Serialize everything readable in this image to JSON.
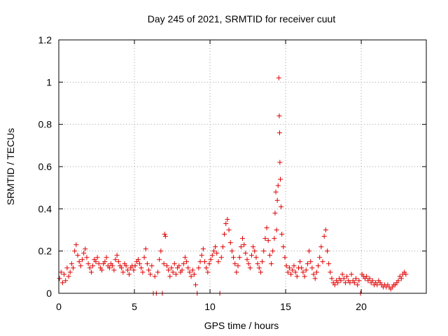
{
  "chart_data": {
    "type": "scatter",
    "title": "Day 245 of 2021, SRMTID for receiver cuut",
    "xlabel": "GPS time / hours",
    "ylabel": "SRMTID / TECUs",
    "xlim": [
      0,
      24.3
    ],
    "ylim": [
      0,
      1.2
    ],
    "x_ticks": [
      0,
      5,
      10,
      15,
      20
    ],
    "x_tick_labels": [
      "0",
      "5",
      "10",
      "15",
      "20"
    ],
    "y_ticks": [
      0,
      0.2,
      0.4,
      0.6,
      0.8,
      1.0,
      1.2
    ],
    "y_tick_labels": [
      "0",
      "0.2",
      "0.4",
      "0.6",
      "0.8",
      "1",
      "1.2"
    ],
    "grid": true,
    "marker": "+",
    "color": "#e00000",
    "series": [
      {
        "name": "SRMTID",
        "points": [
          [
            0.05,
            0.07
          ],
          [
            0.15,
            0.1
          ],
          [
            0.25,
            0.05
          ],
          [
            0.35,
            0.09
          ],
          [
            0.45,
            0.06
          ],
          [
            0.55,
            0.12
          ],
          [
            0.65,
            0.08
          ],
          [
            0.75,
            0.1
          ],
          [
            0.85,
            0.14
          ],
          [
            0.95,
            0.12
          ],
          [
            1.05,
            0.2
          ],
          [
            1.15,
            0.23
          ],
          [
            1.25,
            0.18
          ],
          [
            1.35,
            0.15
          ],
          [
            1.45,
            0.13
          ],
          [
            1.55,
            0.16
          ],
          [
            1.65,
            0.19
          ],
          [
            1.75,
            0.21
          ],
          [
            1.85,
            0.17
          ],
          [
            1.95,
            0.14
          ],
          [
            2.05,
            0.12
          ],
          [
            2.15,
            0.1
          ],
          [
            2.25,
            0.13
          ],
          [
            2.35,
            0.16
          ],
          [
            2.45,
            0.15
          ],
          [
            2.55,
            0.17
          ],
          [
            2.65,
            0.14
          ],
          [
            2.75,
            0.12
          ],
          [
            2.85,
            0.11
          ],
          [
            2.95,
            0.14
          ],
          [
            3.05,
            0.15
          ],
          [
            3.15,
            0.17
          ],
          [
            3.25,
            0.13
          ],
          [
            3.35,
            0.12
          ],
          [
            3.45,
            0.14
          ],
          [
            3.55,
            0.13
          ],
          [
            3.65,
            0.11
          ],
          [
            3.75,
            0.16
          ],
          [
            3.85,
            0.18
          ],
          [
            3.95,
            0.15
          ],
          [
            4.05,
            0.13
          ],
          [
            4.15,
            0.12
          ],
          [
            4.25,
            0.1
          ],
          [
            4.35,
            0.14
          ],
          [
            4.45,
            0.13
          ],
          [
            4.55,
            0.11
          ],
          [
            4.65,
            0.09
          ],
          [
            4.75,
            0.12
          ],
          [
            4.85,
            0.13
          ],
          [
            4.95,
            0.11
          ],
          [
            5.05,
            0.13
          ],
          [
            5.15,
            0.15
          ],
          [
            5.25,
            0.16
          ],
          [
            5.35,
            0.14
          ],
          [
            5.45,
            0.12
          ],
          [
            5.55,
            0.1
          ],
          [
            5.65,
            0.17
          ],
          [
            5.75,
            0.21
          ],
          [
            5.85,
            0.14
          ],
          [
            5.95,
            0.11
          ],
          [
            6.05,
            0.09
          ],
          [
            6.15,
            0.13
          ],
          [
            6.25,
            0.0
          ],
          [
            6.35,
            0.08
          ],
          [
            6.45,
            0.0
          ],
          [
            6.55,
            0.1
          ],
          [
            6.65,
            0.16
          ],
          [
            6.75,
            0.2
          ],
          [
            6.85,
            0.0
          ],
          [
            6.95,
            0.14
          ],
          [
            7.0,
            0.28
          ],
          [
            7.05,
            0.27
          ],
          [
            7.15,
            0.13
          ],
          [
            7.25,
            0.11
          ],
          [
            7.35,
            0.08
          ],
          [
            7.45,
            0.12
          ],
          [
            7.55,
            0.1
          ],
          [
            7.65,
            0.14
          ],
          [
            7.75,
            0.09
          ],
          [
            7.85,
            0.12
          ],
          [
            7.95,
            0.13
          ],
          [
            8.05,
            0.1
          ],
          [
            8.15,
            0.11
          ],
          [
            8.25,
            0.14
          ],
          [
            8.35,
            0.17
          ],
          [
            8.45,
            0.15
          ],
          [
            8.55,
            0.12
          ],
          [
            8.65,
            0.1
          ],
          [
            8.75,
            0.08
          ],
          [
            8.85,
            0.11
          ],
          [
            8.95,
            0.09
          ],
          [
            9.05,
            0.04
          ],
          [
            9.15,
            0.0
          ],
          [
            9.25,
            0.12
          ],
          [
            9.35,
            0.15
          ],
          [
            9.45,
            0.18
          ],
          [
            9.55,
            0.21
          ],
          [
            9.65,
            0.15
          ],
          [
            9.75,
            0.12
          ],
          [
            9.85,
            0.1
          ],
          [
            9.95,
            0.14
          ],
          [
            10.05,
            0.16
          ],
          [
            10.15,
            0.18
          ],
          [
            10.25,
            0.2
          ],
          [
            10.35,
            0.22
          ],
          [
            10.45,
            0.19
          ],
          [
            10.55,
            0.15
          ],
          [
            10.65,
            0.0
          ],
          [
            10.75,
            0.17
          ],
          [
            10.85,
            0.22
          ],
          [
            10.95,
            0.28
          ],
          [
            11.05,
            0.33
          ],
          [
            11.15,
            0.35
          ],
          [
            11.25,
            0.3
          ],
          [
            11.35,
            0.24
          ],
          [
            11.45,
            0.2
          ],
          [
            11.55,
            0.17
          ],
          [
            11.65,
            0.14
          ],
          [
            11.75,
            0.1
          ],
          [
            11.85,
            0.13
          ],
          [
            11.95,
            0.17
          ],
          [
            12.05,
            0.22
          ],
          [
            12.15,
            0.26
          ],
          [
            12.25,
            0.23
          ],
          [
            12.35,
            0.19
          ],
          [
            12.45,
            0.16
          ],
          [
            12.55,
            0.14
          ],
          [
            12.65,
            0.12
          ],
          [
            12.75,
            0.18
          ],
          [
            12.85,
            0.22
          ],
          [
            12.95,
            0.2
          ],
          [
            13.05,
            0.17
          ],
          [
            13.15,
            0.14
          ],
          [
            13.25,
            0.12
          ],
          [
            13.35,
            0.1
          ],
          [
            13.45,
            0.15
          ],
          [
            13.55,
            0.2
          ],
          [
            13.65,
            0.26
          ],
          [
            13.75,
            0.31
          ],
          [
            13.85,
            0.25
          ],
          [
            13.95,
            0.18
          ],
          [
            14.05,
            0.14
          ],
          [
            14.15,
            0.2
          ],
          [
            14.25,
            0.26
          ],
          [
            14.3,
            0.38
          ],
          [
            14.35,
            0.48
          ],
          [
            14.4,
            0.3
          ],
          [
            14.45,
            0.44
          ],
          [
            14.5,
            0.51
          ],
          [
            14.55,
            1.02
          ],
          [
            14.58,
            0.84
          ],
          [
            14.6,
            0.76
          ],
          [
            14.62,
            0.62
          ],
          [
            14.65,
            0.54
          ],
          [
            14.7,
            0.41
          ],
          [
            14.75,
            0.28
          ],
          [
            14.85,
            0.22
          ],
          [
            14.95,
            0.17
          ],
          [
            15.05,
            0.13
          ],
          [
            15.15,
            0.1
          ],
          [
            15.25,
            0.12
          ],
          [
            15.35,
            0.09
          ],
          [
            15.45,
            0.11
          ],
          [
            15.55,
            0.13
          ],
          [
            15.65,
            0.1
          ],
          [
            15.75,
            0.08
          ],
          [
            15.85,
            0.12
          ],
          [
            15.95,
            0.15
          ],
          [
            16.05,
            0.12
          ],
          [
            16.15,
            0.1
          ],
          [
            16.25,
            0.08
          ],
          [
            16.35,
            0.11
          ],
          [
            16.45,
            0.14
          ],
          [
            16.55,
            0.2
          ],
          [
            16.65,
            0.15
          ],
          [
            16.75,
            0.12
          ],
          [
            16.85,
            0.09
          ],
          [
            16.95,
            0.07
          ],
          [
            17.05,
            0.1
          ],
          [
            17.15,
            0.13
          ],
          [
            17.25,
            0.17
          ],
          [
            17.35,
            0.22
          ],
          [
            17.45,
            0.15
          ],
          [
            17.55,
            0.27
          ],
          [
            17.65,
            0.3
          ],
          [
            17.75,
            0.2
          ],
          [
            17.85,
            0.14
          ],
          [
            17.95,
            0.1
          ],
          [
            18.05,
            0.07
          ],
          [
            18.15,
            0.05
          ],
          [
            18.25,
            0.04
          ],
          [
            18.35,
            0.06
          ],
          [
            18.45,
            0.05
          ],
          [
            18.55,
            0.07
          ],
          [
            18.65,
            0.06
          ],
          [
            18.75,
            0.09
          ],
          [
            18.85,
            0.07
          ],
          [
            18.95,
            0.05
          ],
          [
            19.05,
            0.08
          ],
          [
            19.15,
            0.06
          ],
          [
            19.25,
            0.05
          ],
          [
            19.35,
            0.09
          ],
          [
            19.45,
            0.06
          ],
          [
            19.55,
            0.05
          ],
          [
            19.65,
            0.07
          ],
          [
            19.75,
            0.04
          ],
          [
            19.85,
            0.06
          ],
          [
            19.95,
            0.0
          ],
          [
            20.05,
            0.09
          ],
          [
            20.15,
            0.08
          ],
          [
            20.25,
            0.07
          ],
          [
            20.35,
            0.08
          ],
          [
            20.45,
            0.06
          ],
          [
            20.55,
            0.07
          ],
          [
            20.65,
            0.05
          ],
          [
            20.75,
            0.06
          ],
          [
            20.85,
            0.04
          ],
          [
            20.95,
            0.05
          ],
          [
            21.05,
            0.04
          ],
          [
            21.15,
            0.06
          ],
          [
            21.25,
            0.05
          ],
          [
            21.35,
            0.04
          ],
          [
            21.45,
            0.03
          ],
          [
            21.55,
            0.04
          ],
          [
            21.65,
            0.03
          ],
          [
            21.75,
            0.04
          ],
          [
            21.85,
            0.03
          ],
          [
            21.95,
            0.02
          ],
          [
            22.05,
            0.03
          ],
          [
            22.15,
            0.04
          ],
          [
            22.25,
            0.04
          ],
          [
            22.35,
            0.05
          ],
          [
            22.45,
            0.06
          ],
          [
            22.55,
            0.08
          ],
          [
            22.65,
            0.07
          ],
          [
            22.75,
            0.09
          ],
          [
            22.85,
            0.1
          ],
          [
            22.95,
            0.09
          ]
        ]
      }
    ]
  }
}
